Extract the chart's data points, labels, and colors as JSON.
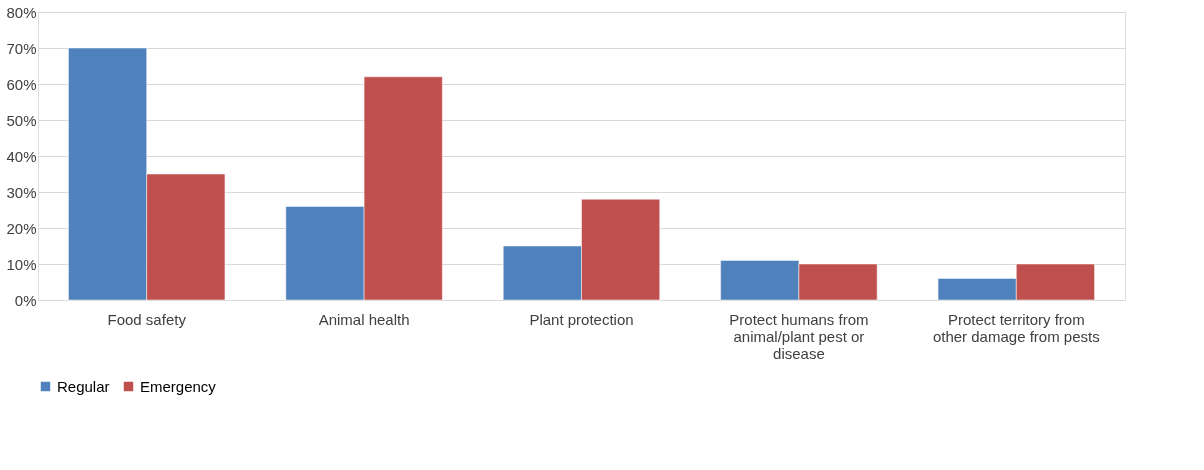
{
  "chart_data": {
    "type": "bar",
    "categories": [
      "Food safety",
      "Animal health",
      "Plant protection",
      "Protect humans from animal/plant pest or disease",
      "Protect territory from other damage from pests"
    ],
    "series": [
      {
        "name": "Regular",
        "color": "#4f81bd",
        "values": [
          70,
          26,
          15,
          11,
          6
        ]
      },
      {
        "name": "Emergency",
        "color": "#c0504d",
        "values": [
          35,
          62,
          28,
          10,
          10
        ]
      }
    ],
    "ylim": [
      0,
      80
    ],
    "yticks": [
      {
        "value": 0,
        "label": "0%"
      },
      {
        "value": 10,
        "label": "10%"
      },
      {
        "value": 20,
        "label": "20%"
      },
      {
        "value": 30,
        "label": "30%"
      },
      {
        "value": 40,
        "label": "40%"
      },
      {
        "value": 50,
        "label": "50%"
      },
      {
        "value": 60,
        "label": "60%"
      },
      {
        "value": 70,
        "label": "70%"
      },
      {
        "value": 80,
        "label": "80%"
      }
    ],
    "grid": "y",
    "legend": "bottom"
  }
}
